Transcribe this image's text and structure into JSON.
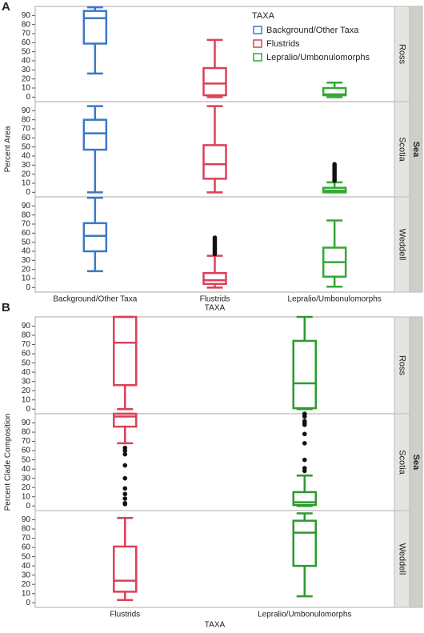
{
  "chart_data": [
    {
      "type": "box",
      "panel_label": "A",
      "x_label": "TAXA",
      "y_label": "Percent Area",
      "facet_label": "Sea",
      "legend": "upper right",
      "legend_title": "TAXA",
      "categories": [
        "Background/Other Taxa",
        "Flustrids",
        "Lepralio/Umbonulomorphs"
      ],
      "colors": [
        "#3c78c8",
        "#dc4058",
        "#34a834"
      ],
      "ylim": [
        -5,
        100
      ],
      "yticks": [
        0,
        10,
        20,
        30,
        40,
        50,
        60,
        70,
        80,
        90
      ],
      "panels": [
        {
          "name": "Ross",
          "boxes": [
            {
              "min": 26,
              "q1": 59,
              "median": 87,
              "q3": 95,
              "max": 99,
              "outliers": []
            },
            {
              "min": 0,
              "q1": 2,
              "median": 15,
              "q3": 32,
              "max": 63,
              "outliers": []
            },
            {
              "min": 0,
              "q1": 2,
              "median": 3,
              "q3": 10,
              "max": 16,
              "outliers": []
            }
          ]
        },
        {
          "name": "Scotia",
          "boxes": [
            {
              "min": 0,
              "q1": 47,
              "median": 65,
              "q3": 80,
              "max": 95,
              "outliers": []
            },
            {
              "min": 0,
              "q1": 15,
              "median": 31,
              "q3": 52,
              "max": 95,
              "outliers": []
            },
            {
              "min": 0,
              "q1": 0,
              "median": 2,
              "q3": 5,
              "max": 11,
              "outliers": [
                13,
                15,
                17,
                19,
                21,
                23,
                25,
                27,
                29,
                31
              ]
            }
          ]
        },
        {
          "name": "Weddell",
          "boxes": [
            {
              "min": 18,
              "q1": 40,
              "median": 57,
              "q3": 71,
              "max": 99,
              "outliers": []
            },
            {
              "min": 0,
              "q1": 4,
              "median": 8,
              "q3": 16,
              "max": 35,
              "outliers": [
                37,
                39,
                41,
                43,
                45,
                47,
                49,
                51,
                53,
                55
              ]
            },
            {
              "min": 1,
              "q1": 12,
              "median": 28,
              "q3": 44,
              "max": 74,
              "outliers": []
            }
          ]
        }
      ]
    },
    {
      "type": "box",
      "panel_label": "B",
      "x_label": "TAXA",
      "y_label": "Percent Clade Composition",
      "facet_label": "Sea",
      "categories": [
        "Flustrids",
        "Lepralio/Umbonulomorphs"
      ],
      "colors": [
        "#dc4058",
        "#2c9a2c"
      ],
      "ylim": [
        -5,
        100
      ],
      "yticks": [
        0,
        10,
        20,
        30,
        40,
        50,
        60,
        70,
        80,
        90
      ],
      "panels": [
        {
          "name": "Ross",
          "boxes": [
            {
              "min": 0,
              "q1": 26,
              "median": 72,
              "q3": 100,
              "max": 100,
              "outliers": []
            },
            {
              "min": 0,
              "q1": 1,
              "median": 28,
              "q3": 74,
              "max": 100,
              "outliers": []
            }
          ]
        },
        {
          "name": "Scotia",
          "boxes": [
            {
              "min": 68,
              "q1": 86,
              "median": 97,
              "q3": 100,
              "max": 100,
              "outliers": [
                63,
                60,
                56,
                44,
                30,
                19,
                13,
                8,
                3,
                2
              ]
            },
            {
              "min": 0,
              "q1": 1,
              "median": 4,
              "q3": 15,
              "max": 33,
              "outliers": [
                100,
                99,
                97,
                92,
                90,
                88,
                78,
                68,
                50,
                41,
                38
              ]
            }
          ]
        },
        {
          "name": "Weddell",
          "boxes": [
            {
              "min": 3,
              "q1": 12,
              "median": 24,
              "q3": 61,
              "max": 92,
              "outliers": []
            },
            {
              "min": 7,
              "q1": 40,
              "median": 76,
              "q3": 89,
              "max": 97,
              "outliers": []
            }
          ]
        }
      ]
    }
  ]
}
